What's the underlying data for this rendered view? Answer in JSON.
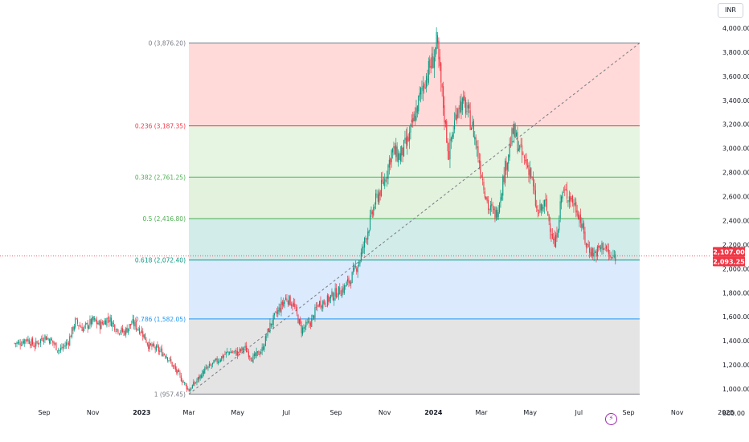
{
  "currency_label": "INR",
  "events_icon": "lightning-icon",
  "colors": {
    "up": "#089981",
    "down": "#f23645",
    "price_line": "#f23645",
    "fib_0_zone": "#ffdad8",
    "fib_236_zone": "#e6f4e2",
    "fib_382_zone": "#e2f2dd",
    "fib_5_zone": "#d2ecea",
    "fib_618_zone": "#dbeafc",
    "fib_786_zone": "#e4e4e4"
  },
  "chart_data": {
    "type": "candlestick",
    "title": "",
    "currency": "INR",
    "y_ticks": [
      "4,000.00",
      "3,800.00",
      "3,600.00",
      "3,400.00",
      "3,200.00",
      "3,000.00",
      "2,800.00",
      "2,600.00",
      "2,400.00",
      "2,200.00",
      "2,000.00",
      "1,800.00",
      "1,600.00",
      "1,400.00",
      "1,200.00",
      "1,000.00",
      "800.00"
    ],
    "y_tick_values": [
      4000,
      3800,
      3600,
      3400,
      3200,
      3000,
      2800,
      2600,
      2400,
      2200,
      2000,
      1800,
      1600,
      1400,
      1200,
      1000,
      800
    ],
    "ylim": [
      800,
      4100
    ],
    "x_ticks": [
      "Sep",
      "Nov",
      "2023",
      "Mar",
      "May",
      "Jul",
      "Sep",
      "Nov",
      "2024",
      "Mar",
      "May",
      "Jul",
      "Sep",
      "Nov",
      "2025"
    ],
    "x_tick_dates": [
      "2022-09-01",
      "2022-11-01",
      "2023-01-01",
      "2023-03-01",
      "2023-05-01",
      "2023-07-01",
      "2023-09-01",
      "2023-11-01",
      "2024-01-01",
      "2024-03-01",
      "2024-05-01",
      "2024-07-01",
      "2024-09-01",
      "2024-11-01",
      "2025-01-01"
    ],
    "bold_x_ticks": [
      "2023",
      "2024"
    ],
    "fib_levels": [
      {
        "ratio": 0,
        "label": "0 (3,876.20)",
        "price": 3876.2,
        "color": "#787b86"
      },
      {
        "ratio": 0.236,
        "label": "0.236 (3,187.35)",
        "price": 3187.35,
        "color": "#f23645"
      },
      {
        "ratio": 0.382,
        "label": "0.382 (2,761.25)",
        "price": 2761.25,
        "color": "#4caf50"
      },
      {
        "ratio": 0.5,
        "label": "0.5 (2,416.80)",
        "price": 2416.8,
        "color": "#4caf50"
      },
      {
        "ratio": 0.618,
        "label": "0.618 (2,072.40)",
        "price": 2072.4,
        "color": "#089981"
      },
      {
        "ratio": 0.786,
        "label": "0.786 (1,582.05)",
        "price": 1582.05,
        "color": "#2196f3"
      },
      {
        "ratio": 1,
        "label": "1 (957.45)",
        "price": 957.45,
        "color": "#787b86"
      }
    ],
    "fib_start": {
      "date": "2023-03-01",
      "price": 957.45
    },
    "fib_end": {
      "date": "2024-09-15",
      "price": 3876.2
    },
    "last_price_tags": [
      {
        "label": "2,107.00",
        "price": 2107.0
      },
      {
        "label": "2,093.25",
        "price": 2093.25
      }
    ],
    "last_price": 2107.0,
    "series": [
      {
        "date": "2022-08-01",
        "close": 1380
      },
      {
        "date": "2022-08-10",
        "close": 1420
      },
      {
        "date": "2022-08-20",
        "close": 1360
      },
      {
        "date": "2022-09-01",
        "close": 1440
      },
      {
        "date": "2022-09-10",
        "close": 1400
      },
      {
        "date": "2022-09-20",
        "close": 1320
      },
      {
        "date": "2022-10-01",
        "close": 1390
      },
      {
        "date": "2022-10-10",
        "close": 1560
      },
      {
        "date": "2022-10-20",
        "close": 1500
      },
      {
        "date": "2022-11-01",
        "close": 1570
      },
      {
        "date": "2022-11-10",
        "close": 1530
      },
      {
        "date": "2022-11-20",
        "close": 1590
      },
      {
        "date": "2022-12-01",
        "close": 1500
      },
      {
        "date": "2022-12-10",
        "close": 1470
      },
      {
        "date": "2022-12-20",
        "close": 1550
      },
      {
        "date": "2023-01-01",
        "close": 1480
      },
      {
        "date": "2023-01-10",
        "close": 1360
      },
      {
        "date": "2023-01-20",
        "close": 1330
      },
      {
        "date": "2023-02-01",
        "close": 1280
      },
      {
        "date": "2023-02-10",
        "close": 1180
      },
      {
        "date": "2023-02-20",
        "close": 1080
      },
      {
        "date": "2023-03-01",
        "close": 990
      },
      {
        "date": "2023-03-10",
        "close": 1060
      },
      {
        "date": "2023-03-20",
        "close": 1150
      },
      {
        "date": "2023-04-01",
        "close": 1210
      },
      {
        "date": "2023-04-10",
        "close": 1260
      },
      {
        "date": "2023-04-20",
        "close": 1310
      },
      {
        "date": "2023-05-01",
        "close": 1300
      },
      {
        "date": "2023-05-10",
        "close": 1340
      },
      {
        "date": "2023-05-20",
        "close": 1250
      },
      {
        "date": "2023-06-01",
        "close": 1330
      },
      {
        "date": "2023-06-10",
        "close": 1520
      },
      {
        "date": "2023-06-20",
        "close": 1640
      },
      {
        "date": "2023-07-01",
        "close": 1760
      },
      {
        "date": "2023-07-10",
        "close": 1700
      },
      {
        "date": "2023-07-20",
        "close": 1490
      },
      {
        "date": "2023-08-01",
        "close": 1560
      },
      {
        "date": "2023-08-10",
        "close": 1710
      },
      {
        "date": "2023-08-20",
        "close": 1730
      },
      {
        "date": "2023-09-01",
        "close": 1800
      },
      {
        "date": "2023-09-10",
        "close": 1830
      },
      {
        "date": "2023-09-20",
        "close": 1920
      },
      {
        "date": "2023-10-01",
        "close": 2080
      },
      {
        "date": "2023-10-10",
        "close": 2300
      },
      {
        "date": "2023-10-20",
        "close": 2550
      },
      {
        "date": "2023-11-01",
        "close": 2740
      },
      {
        "date": "2023-11-10",
        "close": 2980
      },
      {
        "date": "2023-11-20",
        "close": 2930
      },
      {
        "date": "2023-12-01",
        "close": 3080
      },
      {
        "date": "2023-12-10",
        "close": 3300
      },
      {
        "date": "2023-12-20",
        "close": 3550
      },
      {
        "date": "2024-01-01",
        "close": 3750
      },
      {
        "date": "2024-01-05",
        "close": 3876
      },
      {
        "date": "2024-01-10",
        "close": 3560
      },
      {
        "date": "2024-01-20",
        "close": 2950
      },
      {
        "date": "2024-02-01",
        "close": 3380
      },
      {
        "date": "2024-02-10",
        "close": 3350
      },
      {
        "date": "2024-02-20",
        "close": 3150
      },
      {
        "date": "2024-03-01",
        "close": 2800
      },
      {
        "date": "2024-03-10",
        "close": 2500
      },
      {
        "date": "2024-03-20",
        "close": 2450
      },
      {
        "date": "2024-04-01",
        "close": 2880
      },
      {
        "date": "2024-04-10",
        "close": 3150
      },
      {
        "date": "2024-04-20",
        "close": 2950
      },
      {
        "date": "2024-05-01",
        "close": 2820
      },
      {
        "date": "2024-05-10",
        "close": 2450
      },
      {
        "date": "2024-05-20",
        "close": 2540
      },
      {
        "date": "2024-06-01",
        "close": 2180
      },
      {
        "date": "2024-06-10",
        "close": 2640
      },
      {
        "date": "2024-06-20",
        "close": 2600
      },
      {
        "date": "2024-07-01",
        "close": 2460
      },
      {
        "date": "2024-07-10",
        "close": 2200
      },
      {
        "date": "2024-07-20",
        "close": 2120
      },
      {
        "date": "2024-08-01",
        "close": 2200
      },
      {
        "date": "2024-08-10",
        "close": 2080
      },
      {
        "date": "2024-08-16",
        "close": 2107
      }
    ]
  }
}
